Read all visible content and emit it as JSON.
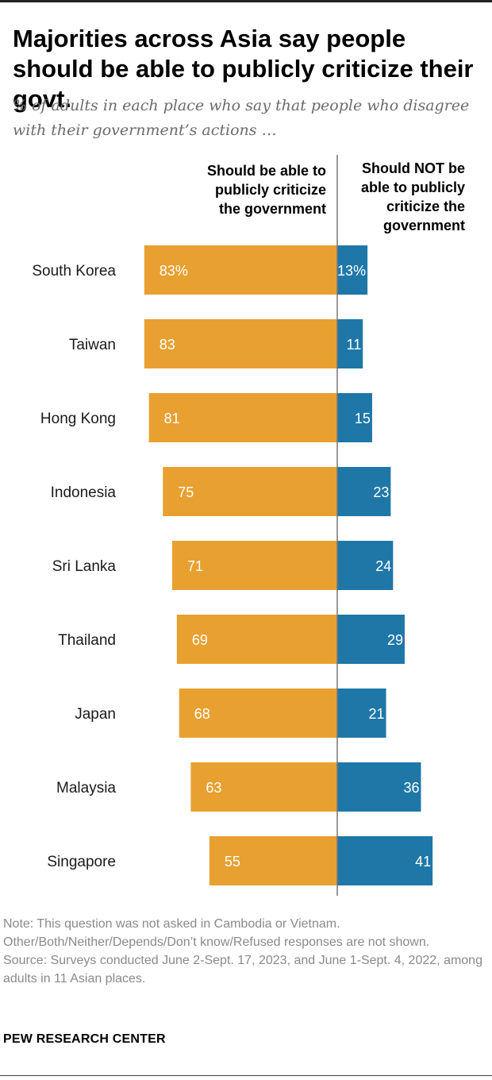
{
  "title": "Majorities across Asia say people should be able to publicly criticize their govt.",
  "subtitle": "% of adults in each place who say that people who disagree with their government’s actions …",
  "chart_data": {
    "type": "bar",
    "orientation": "horizontal-diverging",
    "categories": [
      "South Korea",
      "Taiwan",
      "Hong Kong",
      "Indonesia",
      "Sri Lanka",
      "Thailand",
      "Japan",
      "Malaysia",
      "Singapore"
    ],
    "series": [
      {
        "name": "Should be able to publicly criticize the government",
        "header_lines": [
          "Should be able to",
          "publicly criticize",
          "the government"
        ],
        "color": "#E8A030",
        "values": [
          83,
          83,
          81,
          75,
          71,
          69,
          68,
          63,
          55
        ],
        "labels": [
          "83%",
          "83",
          "81",
          "75",
          "71",
          "69",
          "68",
          "63",
          "55"
        ]
      },
      {
        "name": "Should NOT be able to publicly criticize the government",
        "header_lines": [
          "Should NOT be",
          "able to publicly",
          "criticize the",
          "government"
        ],
        "color": "#1F77A8",
        "values": [
          13,
          11,
          15,
          23,
          24,
          29,
          21,
          36,
          41
        ],
        "labels": [
          "13%",
          "11",
          "15",
          "23",
          "24",
          "29",
          "21",
          "36",
          "41"
        ]
      }
    ],
    "unit": "%",
    "axis_color": "#777777",
    "legend": "column headers above bars"
  },
  "notes": [
    "Note: This question was not asked in Cambodia or Vietnam.",
    "Other/Both/Neither/Depends/Don’t know/Refused responses are not shown.",
    "Source: Surveys conducted June 2-Sept. 17, 2023, and June 1-Sept. 4, 2022, among adults in 11 Asian places."
  ],
  "brand": "PEW RESEARCH CENTER"
}
